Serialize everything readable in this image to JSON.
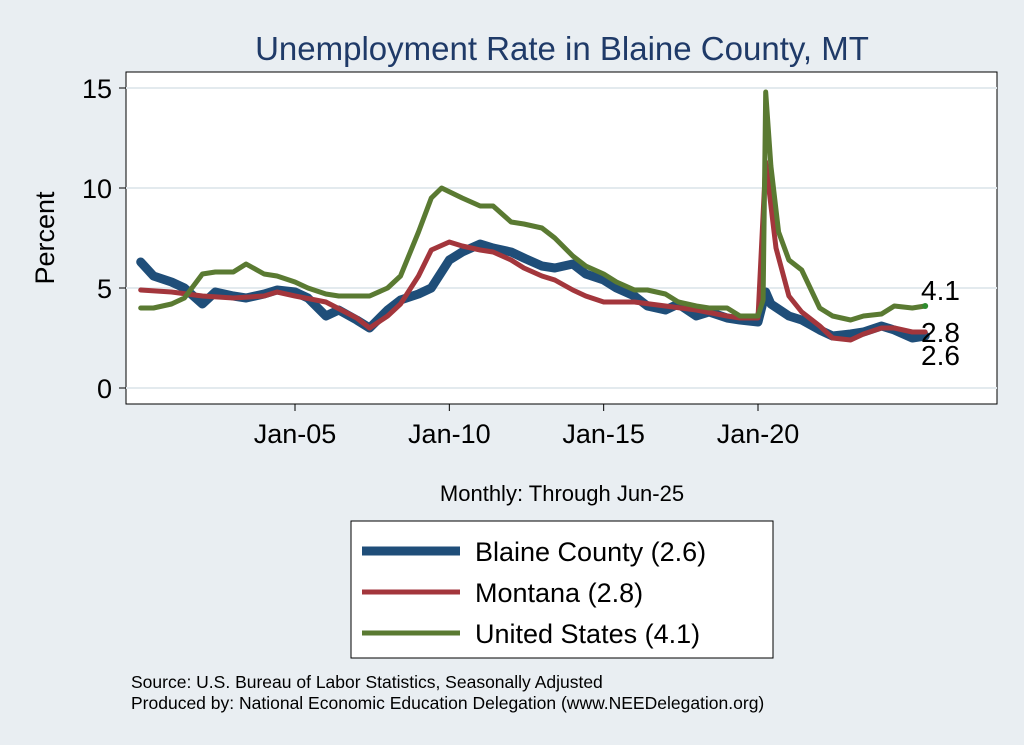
{
  "chart_data": {
    "type": "line",
    "title": "Unemployment Rate in Blaine  County, MT",
    "ylabel": "Percent",
    "xlabel": "Monthly: Through Jun-25",
    "ylim": [
      0,
      15
    ],
    "yticks": [
      0,
      5,
      10,
      15
    ],
    "xticks": [
      {
        "label": "Jan-05",
        "date": "2005-01"
      },
      {
        "label": "Jan-10",
        "date": "2010-01"
      },
      {
        "label": "Jan-15",
        "date": "2015-01"
      },
      {
        "label": "Jan-20",
        "date": "2020-01"
      }
    ],
    "x_range": [
      "2000-01",
      "2025-06"
    ],
    "grid": true,
    "series": [
      {
        "name": "Blaine  County",
        "legend_label": "Blaine  County (2.6)",
        "color": "#1f4e79",
        "end_label": "2.6",
        "points": [
          [
            "2000-01",
            6.3
          ],
          [
            "2000-06",
            5.6
          ],
          [
            "2001-01",
            5.3
          ],
          [
            "2001-06",
            5.0
          ],
          [
            "2002-01",
            4.2
          ],
          [
            "2002-06",
            4.8
          ],
          [
            "2003-01",
            4.6
          ],
          [
            "2003-06",
            4.5
          ],
          [
            "2004-01",
            4.7
          ],
          [
            "2004-06",
            4.9
          ],
          [
            "2005-01",
            4.8
          ],
          [
            "2005-06",
            4.5
          ],
          [
            "2006-01",
            3.6
          ],
          [
            "2006-06",
            3.9
          ],
          [
            "2007-01",
            3.4
          ],
          [
            "2007-06",
            3.0
          ],
          [
            "2008-01",
            3.9
          ],
          [
            "2008-06",
            4.4
          ],
          [
            "2009-01",
            4.7
          ],
          [
            "2009-06",
            5.0
          ],
          [
            "2010-01",
            6.4
          ],
          [
            "2010-06",
            6.8
          ],
          [
            "2011-01",
            7.2
          ],
          [
            "2011-06",
            7.0
          ],
          [
            "2012-01",
            6.8
          ],
          [
            "2012-06",
            6.5
          ],
          [
            "2013-01",
            6.1
          ],
          [
            "2013-06",
            6.0
          ],
          [
            "2014-01",
            6.2
          ],
          [
            "2014-06",
            5.7
          ],
          [
            "2015-01",
            5.4
          ],
          [
            "2015-06",
            5.0
          ],
          [
            "2016-01",
            4.6
          ],
          [
            "2016-06",
            4.1
          ],
          [
            "2017-01",
            3.9
          ],
          [
            "2017-06",
            4.2
          ],
          [
            "2018-01",
            3.6
          ],
          [
            "2018-06",
            3.8
          ],
          [
            "2019-01",
            3.5
          ],
          [
            "2019-06",
            3.4
          ],
          [
            "2020-01",
            3.3
          ],
          [
            "2020-04",
            4.8
          ],
          [
            "2020-06",
            4.2
          ],
          [
            "2021-01",
            3.6
          ],
          [
            "2021-06",
            3.4
          ],
          [
            "2022-01",
            2.9
          ],
          [
            "2022-06",
            2.6
          ],
          [
            "2023-01",
            2.7
          ],
          [
            "2023-06",
            2.8
          ],
          [
            "2024-01",
            3.1
          ],
          [
            "2024-06",
            2.9
          ],
          [
            "2025-01",
            2.5
          ],
          [
            "2025-06",
            2.6
          ]
        ]
      },
      {
        "name": "Montana",
        "legend_label": "Montana (2.8)",
        "color": "#a3363c",
        "end_label": "2.8",
        "points": [
          [
            "2000-01",
            4.9
          ],
          [
            "2001-01",
            4.8
          ],
          [
            "2002-01",
            4.6
          ],
          [
            "2003-01",
            4.5
          ],
          [
            "2004-01",
            4.6
          ],
          [
            "2004-06",
            4.8
          ],
          [
            "2005-01",
            4.6
          ],
          [
            "2006-01",
            4.3
          ],
          [
            "2007-01",
            3.5
          ],
          [
            "2007-06",
            3.0
          ],
          [
            "2008-01",
            3.6
          ],
          [
            "2008-06",
            4.2
          ],
          [
            "2009-01",
            5.6
          ],
          [
            "2009-06",
            6.9
          ],
          [
            "2010-01",
            7.3
          ],
          [
            "2010-06",
            7.1
          ],
          [
            "2011-01",
            6.9
          ],
          [
            "2011-06",
            6.8
          ],
          [
            "2012-01",
            6.4
          ],
          [
            "2012-06",
            6.0
          ],
          [
            "2013-01",
            5.6
          ],
          [
            "2013-06",
            5.4
          ],
          [
            "2014-01",
            4.9
          ],
          [
            "2014-06",
            4.6
          ],
          [
            "2015-01",
            4.3
          ],
          [
            "2016-01",
            4.3
          ],
          [
            "2017-01",
            4.1
          ],
          [
            "2018-01",
            3.9
          ],
          [
            "2019-01",
            3.6
          ],
          [
            "2019-06",
            3.5
          ],
          [
            "2020-01",
            3.5
          ],
          [
            "2020-04",
            11.3
          ],
          [
            "2020-08",
            7.0
          ],
          [
            "2021-01",
            4.6
          ],
          [
            "2021-06",
            3.8
          ],
          [
            "2022-01",
            3.1
          ],
          [
            "2022-06",
            2.5
          ],
          [
            "2023-01",
            2.4
          ],
          [
            "2023-06",
            2.7
          ],
          [
            "2024-01",
            3.0
          ],
          [
            "2024-06",
            3.0
          ],
          [
            "2025-01",
            2.8
          ],
          [
            "2025-06",
            2.8
          ]
        ]
      },
      {
        "name": "United States",
        "legend_label": "United States (4.1)",
        "color": "#5a7a32",
        "end_label": "4.1",
        "points": [
          [
            "2000-01",
            4.0
          ],
          [
            "2000-06",
            4.0
          ],
          [
            "2001-01",
            4.2
          ],
          [
            "2001-06",
            4.5
          ],
          [
            "2002-01",
            5.7
          ],
          [
            "2002-06",
            5.8
          ],
          [
            "2003-01",
            5.8
          ],
          [
            "2003-06",
            6.2
          ],
          [
            "2004-01",
            5.7
          ],
          [
            "2004-06",
            5.6
          ],
          [
            "2005-01",
            5.3
          ],
          [
            "2005-06",
            5.0
          ],
          [
            "2006-01",
            4.7
          ],
          [
            "2006-06",
            4.6
          ],
          [
            "2007-01",
            4.6
          ],
          [
            "2007-06",
            4.6
          ],
          [
            "2008-01",
            5.0
          ],
          [
            "2008-06",
            5.6
          ],
          [
            "2009-01",
            7.8
          ],
          [
            "2009-06",
            9.5
          ],
          [
            "2009-10",
            10.0
          ],
          [
            "2010-06",
            9.5
          ],
          [
            "2011-01",
            9.1
          ],
          [
            "2011-06",
            9.1
          ],
          [
            "2012-01",
            8.3
          ],
          [
            "2012-06",
            8.2
          ],
          [
            "2013-01",
            8.0
          ],
          [
            "2013-06",
            7.5
          ],
          [
            "2014-01",
            6.6
          ],
          [
            "2014-06",
            6.1
          ],
          [
            "2015-01",
            5.7
          ],
          [
            "2015-06",
            5.3
          ],
          [
            "2016-01",
            4.9
          ],
          [
            "2016-06",
            4.9
          ],
          [
            "2017-01",
            4.7
          ],
          [
            "2017-06",
            4.3
          ],
          [
            "2018-01",
            4.1
          ],
          [
            "2018-06",
            4.0
          ],
          [
            "2019-01",
            4.0
          ],
          [
            "2019-06",
            3.6
          ],
          [
            "2020-01",
            3.6
          ],
          [
            "2020-03",
            4.4
          ],
          [
            "2020-04",
            14.8
          ],
          [
            "2020-06",
            11.1
          ],
          [
            "2020-09",
            7.8
          ],
          [
            "2021-01",
            6.4
          ],
          [
            "2021-06",
            5.9
          ],
          [
            "2022-01",
            4.0
          ],
          [
            "2022-06",
            3.6
          ],
          [
            "2023-01",
            3.4
          ],
          [
            "2023-06",
            3.6
          ],
          [
            "2024-01",
            3.7
          ],
          [
            "2024-06",
            4.1
          ],
          [
            "2025-01",
            4.0
          ],
          [
            "2025-06",
            4.1
          ]
        ]
      }
    ],
    "legend_placement": "bottom-center"
  },
  "source_note": "Source: U.S. Bureau of Labor Statistics, Seasonally Adjusted",
  "producer_note": "Produced by: National Economic Education Delegation (www.NEEDelegation.org)"
}
